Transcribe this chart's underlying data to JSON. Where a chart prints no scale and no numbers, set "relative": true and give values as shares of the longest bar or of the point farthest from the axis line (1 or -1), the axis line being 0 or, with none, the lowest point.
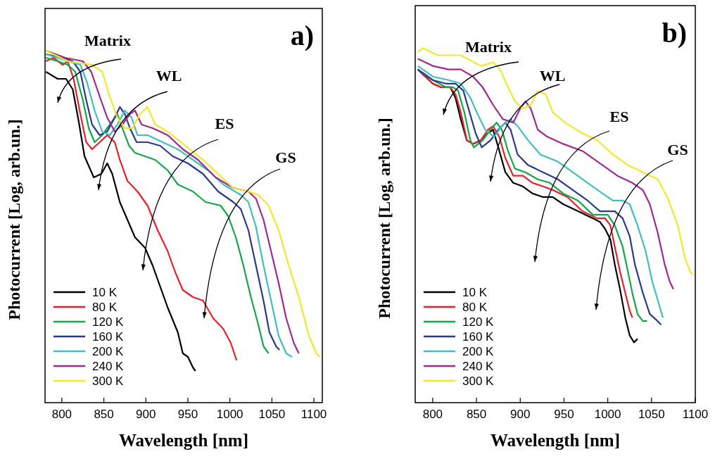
{
  "chart_data": [
    {
      "type": "line",
      "relative": true,
      "xlabel": "Wavelength [nm]",
      "ylabel": "Photocurrent [Log, arb.un.]",
      "xlim": [
        780,
        1110
      ],
      "xticks": [
        800,
        850,
        900,
        950,
        1000,
        1050,
        1100
      ],
      "legend": "bottom left",
      "grid": false,
      "annotations": [
        "a)",
        "Matrix",
        "WL",
        "ES",
        "GS"
      ],
      "series": [
        {
          "name": "10 K",
          "color": "#000000",
          "x": [
            781,
            795,
            805,
            813,
            820,
            827,
            838,
            847,
            854,
            860,
            869,
            878,
            887,
            899,
            908,
            917,
            926,
            938,
            944,
            950,
            956,
            959
          ],
          "values": [
            0.94,
            0.92,
            0.92,
            0.89,
            0.8,
            0.7,
            0.64,
            0.65,
            0.68,
            0.65,
            0.57,
            0.52,
            0.47,
            0.44,
            0.39,
            0.33,
            0.27,
            0.2,
            0.14,
            0.13,
            0.1,
            0.09
          ]
        },
        {
          "name": "80 K",
          "color": "#e8202a",
          "x": [
            781,
            790,
            801,
            807,
            814,
            822,
            829,
            836,
            845,
            854,
            863,
            869,
            878,
            890,
            902,
            914,
            926,
            935,
            944,
            956,
            968,
            980,
            992,
            1001,
            1008
          ],
          "values": [
            0.97,
            0.98,
            0.96,
            0.97,
            0.92,
            0.82,
            0.74,
            0.72,
            0.74,
            0.76,
            0.74,
            0.69,
            0.63,
            0.6,
            0.56,
            0.49,
            0.43,
            0.37,
            0.32,
            0.3,
            0.29,
            0.24,
            0.21,
            0.17,
            0.12
          ]
        },
        {
          "name": "120 K",
          "color": "#12a84a",
          "x": [
            781,
            795,
            807,
            816,
            825,
            832,
            839,
            848,
            857,
            866,
            872,
            880,
            887,
            899,
            911,
            926,
            938,
            956,
            971,
            989,
            998,
            1007,
            1016,
            1025,
            1034,
            1040,
            1046
          ],
          "values": [
            0.98,
            0.97,
            0.96,
            0.94,
            0.86,
            0.78,
            0.74,
            0.76,
            0.79,
            0.82,
            0.78,
            0.73,
            0.71,
            0.7,
            0.69,
            0.66,
            0.62,
            0.6,
            0.57,
            0.56,
            0.53,
            0.47,
            0.39,
            0.3,
            0.22,
            0.16,
            0.14
          ]
        },
        {
          "name": "160 K",
          "color": "#2b3990",
          "x": [
            781,
            801,
            813,
            822,
            829,
            836,
            845,
            854,
            863,
            869,
            875,
            881,
            889,
            902,
            917,
            932,
            950,
            968,
            986,
            1004,
            1013,
            1022,
            1031,
            1040,
            1047,
            1055,
            1059
          ],
          "values": [
            0.99,
            0.98,
            0.97,
            0.94,
            0.86,
            0.79,
            0.76,
            0.77,
            0.81,
            0.84,
            0.82,
            0.78,
            0.74,
            0.74,
            0.73,
            0.7,
            0.68,
            0.65,
            0.6,
            0.57,
            0.55,
            0.49,
            0.39,
            0.29,
            0.2,
            0.16,
            0.15
          ]
        },
        {
          "name": "200 K",
          "color": "#3fbfbf",
          "x": [
            781,
            807,
            822,
            830,
            839,
            848,
            857,
            866,
            875,
            883,
            890,
            902,
            920,
            938,
            956,
            974,
            992,
            1013,
            1022,
            1031,
            1040,
            1049,
            1058,
            1067,
            1074
          ],
          "values": [
            0.99,
            0.97,
            0.96,
            0.91,
            0.83,
            0.77,
            0.76,
            0.79,
            0.83,
            0.81,
            0.76,
            0.76,
            0.74,
            0.72,
            0.69,
            0.66,
            0.62,
            0.59,
            0.57,
            0.5,
            0.39,
            0.29,
            0.19,
            0.14,
            0.13
          ]
        },
        {
          "name": "240 K",
          "color": "#a0288f",
          "x": [
            781,
            804,
            825,
            835,
            845,
            854,
            863,
            872,
            881,
            887,
            895,
            908,
            926,
            944,
            962,
            983,
            1004,
            1022,
            1031,
            1040,
            1049,
            1058,
            1067,
            1076,
            1082
          ],
          "values": [
            1.0,
            0.98,
            0.97,
            0.94,
            0.87,
            0.81,
            0.77,
            0.79,
            0.82,
            0.83,
            0.79,
            0.78,
            0.76,
            0.72,
            0.69,
            0.64,
            0.61,
            0.6,
            0.58,
            0.52,
            0.43,
            0.34,
            0.24,
            0.17,
            0.14
          ]
        },
        {
          "name": "300 K",
          "color": "#f5e62a",
          "x": [
            781,
            807,
            836,
            848,
            857,
            866,
            875,
            884,
            893,
            902,
            911,
            926,
            947,
            968,
            986,
            1004,
            1022,
            1034,
            1046,
            1058,
            1070,
            1082,
            1094,
            1103,
            1107
          ],
          "values": [
            1.0,
            0.97,
            0.96,
            0.94,
            0.87,
            0.81,
            0.78,
            0.78,
            0.82,
            0.84,
            0.79,
            0.77,
            0.73,
            0.69,
            0.65,
            0.61,
            0.6,
            0.59,
            0.56,
            0.49,
            0.39,
            0.3,
            0.19,
            0.14,
            0.13
          ]
        }
      ]
    },
    {
      "type": "line",
      "relative": true,
      "xlabel": "Wavelength [nm]",
      "ylabel": "Photocurrent [Log, arb.un.]",
      "xlim": [
        780,
        1100
      ],
      "xticks": [
        800,
        850,
        900,
        950,
        1000,
        1050,
        1100
      ],
      "legend": "bottom left",
      "grid": false,
      "annotations": [
        "b)",
        "Matrix",
        "WL",
        "ES",
        "GS"
      ],
      "series": [
        {
          "name": "10 K",
          "color": "#000000",
          "x": [
            783,
            800,
            809,
            820,
            826,
            832,
            839,
            846,
            855,
            863,
            869,
            875,
            883,
            892,
            903,
            914,
            926,
            937,
            949,
            966,
            983,
            991,
            997,
            1003,
            1008,
            1014,
            1020,
            1025,
            1030,
            1034
          ],
          "values": [
            0.94,
            0.9,
            0.89,
            0.89,
            0.86,
            0.8,
            0.74,
            0.73,
            0.74,
            0.76,
            0.77,
            0.72,
            0.65,
            0.62,
            0.61,
            0.59,
            0.58,
            0.58,
            0.56,
            0.54,
            0.52,
            0.51,
            0.49,
            0.46,
            0.39,
            0.32,
            0.24,
            0.19,
            0.17,
            0.18
          ]
        },
        {
          "name": "80 K",
          "color": "#e8202a",
          "x": [
            783,
            800,
            809,
            820,
            826,
            832,
            839,
            846,
            855,
            863,
            869,
            876,
            883,
            892,
            903,
            914,
            926,
            937,
            954,
            971,
            988,
            997,
            1003,
            1008,
            1014,
            1020,
            1025,
            1028
          ],
          "values": [
            0.94,
            0.9,
            0.89,
            0.89,
            0.87,
            0.82,
            0.74,
            0.73,
            0.74,
            0.77,
            0.78,
            0.75,
            0.69,
            0.64,
            0.64,
            0.62,
            0.61,
            0.6,
            0.58,
            0.54,
            0.52,
            0.52,
            0.5,
            0.44,
            0.37,
            0.31,
            0.26,
            0.24
          ]
        },
        {
          "name": "120 K",
          "color": "#12a84a",
          "x": [
            783,
            800,
            815,
            823,
            829,
            836,
            843,
            847,
            857,
            866,
            873,
            879,
            886,
            894,
            906,
            920,
            934,
            949,
            966,
            983,
            1000,
            1008,
            1017,
            1023,
            1028,
            1034,
            1040,
            1045
          ],
          "values": [
            0.94,
            0.91,
            0.89,
            0.89,
            0.88,
            0.82,
            0.74,
            0.72,
            0.74,
            0.77,
            0.79,
            0.77,
            0.71,
            0.66,
            0.65,
            0.63,
            0.62,
            0.59,
            0.57,
            0.53,
            0.53,
            0.5,
            0.44,
            0.37,
            0.31,
            0.25,
            0.23,
            0.23
          ]
        },
        {
          "name": "160 K",
          "color": "#2b3990",
          "x": [
            783,
            800,
            815,
            826,
            835,
            842,
            849,
            856,
            866,
            875,
            883,
            889,
            897,
            909,
            926,
            943,
            960,
            977,
            991,
            1008,
            1017,
            1025,
            1031,
            1040,
            1048,
            1057,
            1061
          ],
          "values": [
            0.94,
            0.91,
            0.9,
            0.9,
            0.88,
            0.82,
            0.76,
            0.72,
            0.74,
            0.77,
            0.79,
            0.77,
            0.7,
            0.67,
            0.65,
            0.63,
            0.6,
            0.57,
            0.54,
            0.54,
            0.52,
            0.47,
            0.39,
            0.31,
            0.25,
            0.23,
            0.22
          ]
        },
        {
          "name": "200 K",
          "color": "#3fbfbf",
          "x": [
            783,
            800,
            818,
            832,
            843,
            852,
            860,
            870,
            879,
            889,
            897,
            909,
            923,
            943,
            960,
            977,
            994,
            1006,
            1017,
            1025,
            1034,
            1043,
            1051,
            1057,
            1063
          ],
          "values": [
            0.95,
            0.92,
            0.91,
            0.9,
            0.86,
            0.81,
            0.77,
            0.75,
            0.78,
            0.8,
            0.78,
            0.74,
            0.7,
            0.68,
            0.65,
            0.62,
            0.59,
            0.57,
            0.57,
            0.56,
            0.5,
            0.43,
            0.34,
            0.29,
            0.24
          ]
        },
        {
          "name": "240 K",
          "color": "#a0288f",
          "x": [
            783,
            800,
            818,
            832,
            846,
            857,
            869,
            880,
            892,
            900,
            906,
            912,
            920,
            931,
            949,
            971,
            994,
            1011,
            1028,
            1040,
            1048,
            1057,
            1065,
            1071,
            1075
          ],
          "values": [
            0.97,
            0.95,
            0.94,
            0.94,
            0.92,
            0.89,
            0.84,
            0.8,
            0.79,
            0.83,
            0.85,
            0.83,
            0.77,
            0.75,
            0.73,
            0.71,
            0.67,
            0.64,
            0.62,
            0.6,
            0.56,
            0.48,
            0.39,
            0.34,
            0.32
          ]
        },
        {
          "name": "300 K",
          "color": "#f5e62a",
          "x": [
            783,
            789,
            806,
            832,
            855,
            869,
            877,
            886,
            894,
            903,
            912,
            920,
            929,
            937,
            951,
            971,
            988,
            1006,
            1023,
            1040,
            1057,
            1068,
            1080,
            1088,
            1094,
            1097
          ],
          "values": [
            0.99,
            1.0,
            0.98,
            0.98,
            0.95,
            0.96,
            0.94,
            0.89,
            0.85,
            0.83,
            0.84,
            0.88,
            0.87,
            0.82,
            0.79,
            0.76,
            0.74,
            0.7,
            0.67,
            0.65,
            0.63,
            0.58,
            0.5,
            0.41,
            0.37,
            0.36
          ]
        }
      ]
    }
  ]
}
